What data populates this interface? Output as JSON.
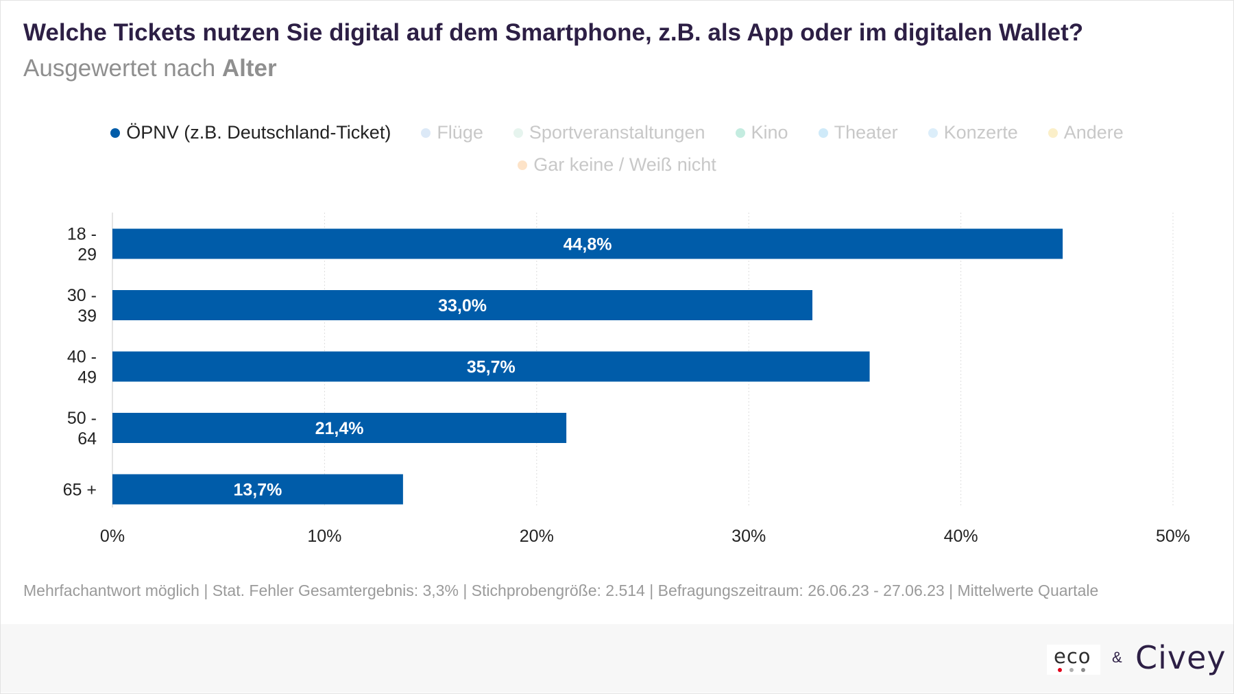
{
  "title": "Welche Tickets nutzen Sie digital auf dem Smartphone, z.B. als App oder im digitalen Wallet?",
  "subtitle_prefix": "Ausgewertet nach",
  "subtitle_bold": "Alter",
  "legend": [
    {
      "label": "ÖPNV (z.B. Deutschland-Ticket)",
      "color": "#005ca9",
      "active": true
    },
    {
      "label": "Flüge",
      "color": "#dce9f7",
      "active": false
    },
    {
      "label": "Sportveranstaltungen",
      "color": "#e6f4ee",
      "active": false
    },
    {
      "label": "Kino",
      "color": "#c4ece0",
      "active": false
    },
    {
      "label": "Theater",
      "color": "#cfeaf9",
      "active": false
    },
    {
      "label": "Konzerte",
      "color": "#dceefa",
      "active": false
    },
    {
      "label": "Andere",
      "color": "#fbefc9",
      "active": false
    },
    {
      "label": "Gar keine / Weiß nicht",
      "color": "#fde3c8",
      "active": false
    }
  ],
  "chart_data": {
    "type": "bar",
    "orientation": "horizontal",
    "categories": [
      "18 - 29",
      "30 - 39",
      "40 - 49",
      "50 - 64",
      "65 +"
    ],
    "series": [
      {
        "name": "ÖPNV (z.B. Deutschland-Ticket)",
        "values": [
          44.8,
          33.0,
          35.7,
          21.4,
          13.7
        ],
        "color": "#005ca9"
      }
    ],
    "value_labels": [
      "44,8%",
      "33,0%",
      "35,7%",
      "21,4%",
      "13,7%"
    ],
    "xlim": [
      0,
      50
    ],
    "x_ticks": [
      0,
      10,
      20,
      30,
      40,
      50
    ],
    "x_tick_labels": [
      "0%",
      "10%",
      "20%",
      "30%",
      "40%",
      "50%"
    ],
    "grid": true
  },
  "footnote": "Mehrfachantwort möglich | Stat. Fehler Gesamtergebnis: 3,3% | Stichprobengröße: 2.514 | Befragungszeitraum: 26.06.23 - 27.06.23 | Mittelwerte Quartale",
  "logos": {
    "eco": "eco",
    "eco_dot_colors": [
      "#e2001a",
      "#b0b0b0",
      "#8a8a8a"
    ],
    "ampersand": "&",
    "civey": "Civey"
  }
}
